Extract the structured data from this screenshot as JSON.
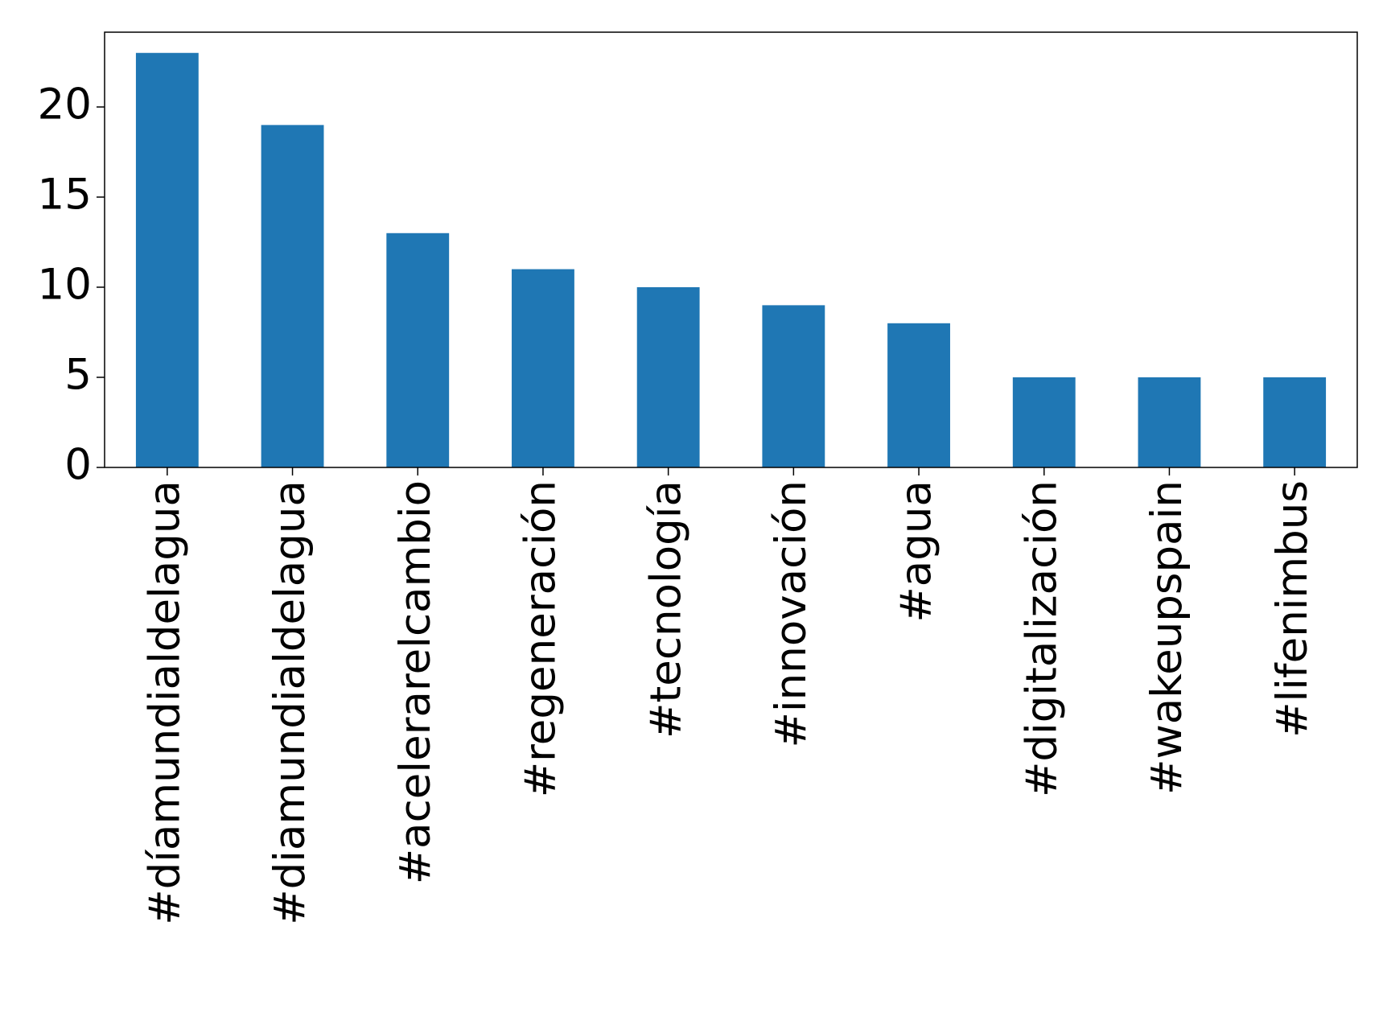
{
  "chart_data": {
    "type": "bar",
    "categories": [
      "#díamundialdelagua",
      "#diamundialdelagua",
      "#acelerarelcambio",
      "#regeneración",
      "#tecnología",
      "#innovación",
      "#agua",
      "#digitalización",
      "#wakeupspain",
      "#lifenimbus"
    ],
    "values": [
      23,
      19,
      13,
      11,
      10,
      9,
      8,
      5,
      5,
      5
    ],
    "color": "#1f77b4",
    "ylim": [
      0,
      24.15
    ],
    "yticks": [
      0,
      5,
      10,
      15,
      20
    ],
    "grid": false
  }
}
